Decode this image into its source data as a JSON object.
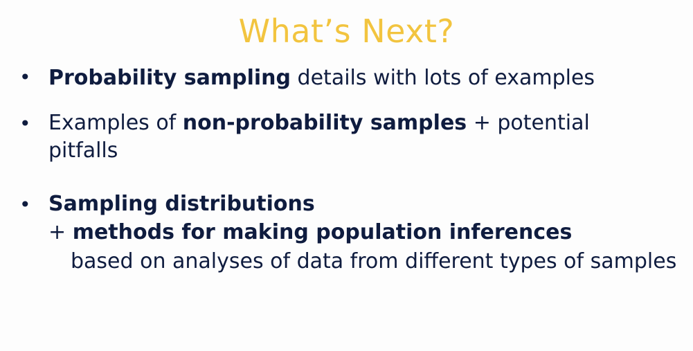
{
  "slide": {
    "title": "What’s Next?",
    "bullet_glyph": "•",
    "bullets": [
      {
        "lines": [
          {
            "bold": "Probability sampling",
            "rest": " details with lots of examples"
          }
        ]
      },
      {
        "lines": [
          {
            "pre": "Examples of ",
            "bold": "non-probability samples",
            "rest": " + potential"
          },
          {
            "text": "pitfalls"
          }
        ]
      },
      {
        "lines": [
          {
            "bold": "Sampling distributions"
          },
          {
            "pre": "+ ",
            "bold": "methods for making population inferences"
          },
          {
            "text": "based on analyses of data from different types of samples"
          }
        ]
      }
    ]
  }
}
